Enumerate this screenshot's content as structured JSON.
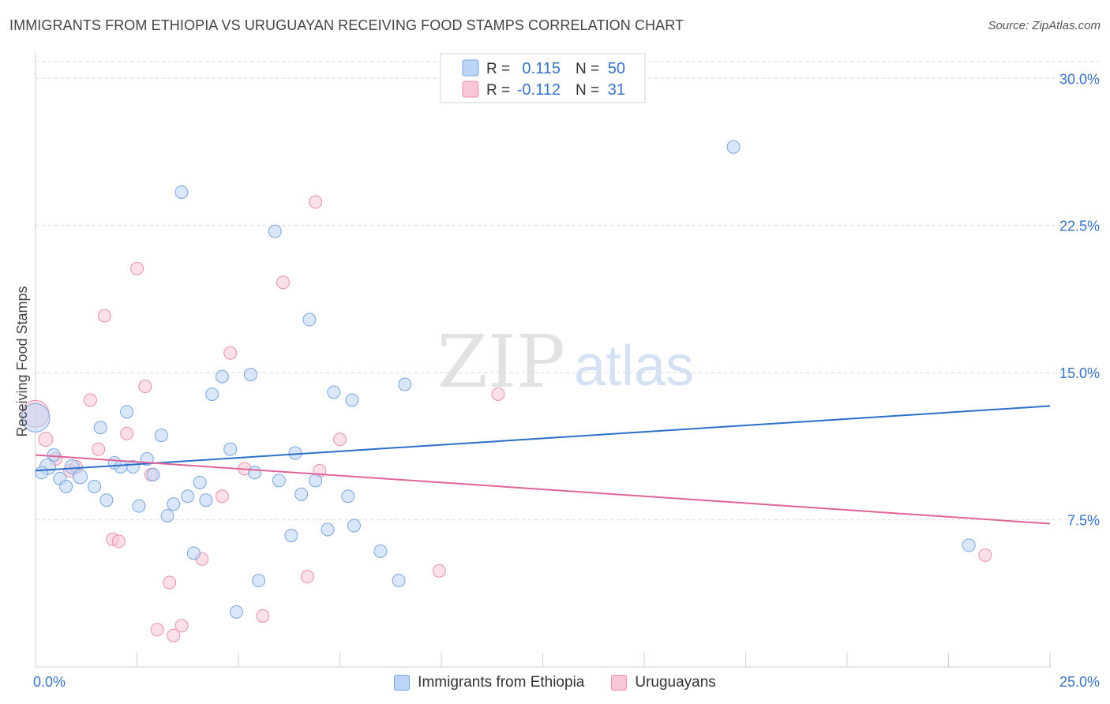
{
  "header": {
    "title": "IMMIGRANTS FROM ETHIOPIA VS URUGUAYAN RECEIVING FOOD STAMPS CORRELATION CHART",
    "source": "Source: ZipAtlas.com"
  },
  "watermark": {
    "zip": "ZIP",
    "atlas": "atlas"
  },
  "colors": {
    "blue_fill": "#bcd4f5",
    "blue_stroke": "#7ba6e2",
    "blue_line": "#2c6fcb",
    "pink_fill": "#f9c6d6",
    "pink_stroke": "#ec90ae",
    "pink_line": "#e0649a",
    "axis_label": "#3a74c8",
    "grid": "#d9d9d9"
  },
  "stats_legend": {
    "rows": [
      {
        "r_label": "R =",
        "r_value": "0.115",
        "n_label": "N =",
        "n_value": "50",
        "color": "blue"
      },
      {
        "r_label": "R =",
        "r_value": "-0.112",
        "n_label": "N =",
        "n_value": "31",
        "color": "pink"
      }
    ]
  },
  "chart_data": {
    "type": "scatter",
    "title": "IMMIGRANTS FROM ETHIOPIA VS URUGUAYAN RECEIVING FOOD STAMPS CORRELATION CHART",
    "xlabel": "",
    "ylabel": "Receiving Food Stamps",
    "xlim": [
      0,
      25
    ],
    "ylim": [
      0,
      31.5
    ],
    "x_tick_labels": [
      {
        "value": 0,
        "label": "0.0%"
      },
      {
        "value": 25,
        "label": "25.0%"
      }
    ],
    "y_tick_labels": [
      {
        "value": 7.5,
        "label": "7.5%"
      },
      {
        "value": 15,
        "label": "15.0%"
      },
      {
        "value": 22.5,
        "label": "22.5%"
      },
      {
        "value": 30,
        "label": "30.0%"
      }
    ],
    "x_minor_ticks": [
      2.5,
      5,
      7.5,
      10,
      12.5,
      15,
      17.5,
      20,
      22.5,
      25
    ],
    "grid": true,
    "legend_position": "bottom",
    "series": [
      {
        "name": "Immigrants from Ethiopia",
        "color": "blue",
        "points": [
          [
            0.0,
            12.7,
            18
          ],
          [
            0.3,
            10.2,
            10
          ],
          [
            0.45,
            10.8,
            8
          ],
          [
            0.6,
            9.6,
            8
          ],
          [
            0.75,
            9.2,
            8
          ],
          [
            0.9,
            10.2,
            9
          ],
          [
            1.1,
            9.7,
            9
          ],
          [
            1.45,
            9.2,
            8
          ],
          [
            1.6,
            12.2,
            8
          ],
          [
            1.75,
            8.5,
            8
          ],
          [
            1.95,
            10.4,
            8
          ],
          [
            2.1,
            10.2,
            8
          ],
          [
            2.25,
            13.0,
            8
          ],
          [
            2.4,
            10.2,
            8
          ],
          [
            2.55,
            8.2,
            8
          ],
          [
            2.75,
            10.6,
            8
          ],
          [
            2.9,
            9.8,
            8
          ],
          [
            3.1,
            11.8,
            8
          ],
          [
            3.25,
            7.7,
            8
          ],
          [
            3.4,
            8.3,
            8
          ],
          [
            3.6,
            24.2,
            8
          ],
          [
            3.75,
            8.7,
            8
          ],
          [
            3.9,
            5.8,
            8
          ],
          [
            4.05,
            9.4,
            8
          ],
          [
            4.2,
            8.5,
            8
          ],
          [
            4.35,
            13.9,
            8
          ],
          [
            4.6,
            14.8,
            8
          ],
          [
            4.8,
            11.1,
            8
          ],
          [
            4.95,
            2.8,
            8
          ],
          [
            5.3,
            14.9,
            8
          ],
          [
            5.4,
            9.9,
            8
          ],
          [
            5.5,
            4.4,
            8
          ],
          [
            5.9,
            22.2,
            8
          ],
          [
            6.0,
            9.5,
            8
          ],
          [
            6.3,
            6.7,
            8
          ],
          [
            6.4,
            10.9,
            8
          ],
          [
            6.55,
            8.8,
            8
          ],
          [
            6.75,
            17.7,
            8
          ],
          [
            6.9,
            9.5,
            8
          ],
          [
            7.2,
            7.0,
            8
          ],
          [
            7.35,
            14.0,
            8
          ],
          [
            7.7,
            8.7,
            8
          ],
          [
            7.8,
            13.6,
            8
          ],
          [
            7.85,
            7.2,
            8
          ],
          [
            8.5,
            5.9,
            8
          ],
          [
            8.95,
            4.4,
            8
          ],
          [
            9.1,
            14.4,
            8
          ],
          [
            17.2,
            26.5,
            8
          ],
          [
            23.0,
            6.2,
            8
          ],
          [
            0.15,
            9.9,
            8
          ]
        ]
      },
      {
        "name": "Uruguayans",
        "color": "pink",
        "points": [
          [
            0.0,
            12.9,
            17
          ],
          [
            0.25,
            11.6,
            9
          ],
          [
            0.5,
            10.6,
            8
          ],
          [
            0.85,
            10.0,
            8
          ],
          [
            1.0,
            10.2,
            8
          ],
          [
            1.35,
            13.6,
            8
          ],
          [
            1.55,
            11.1,
            8
          ],
          [
            1.7,
            17.9,
            8
          ],
          [
            1.9,
            6.5,
            8
          ],
          [
            2.05,
            6.4,
            8
          ],
          [
            2.25,
            11.9,
            8
          ],
          [
            2.5,
            20.3,
            8
          ],
          [
            2.7,
            14.3,
            8
          ],
          [
            2.85,
            9.8,
            8
          ],
          [
            3.0,
            1.9,
            8
          ],
          [
            3.3,
            4.3,
            8
          ],
          [
            3.4,
            1.6,
            8
          ],
          [
            3.6,
            2.1,
            8
          ],
          [
            4.1,
            5.5,
            8
          ],
          [
            4.6,
            8.7,
            8
          ],
          [
            4.8,
            16.0,
            8
          ],
          [
            5.15,
            10.1,
            8
          ],
          [
            5.6,
            2.6,
            8
          ],
          [
            6.1,
            19.6,
            8
          ],
          [
            6.7,
            4.6,
            8
          ],
          [
            6.9,
            23.7,
            8
          ],
          [
            7.0,
            10.0,
            8
          ],
          [
            7.5,
            11.6,
            8
          ],
          [
            9.95,
            4.9,
            8
          ],
          [
            11.4,
            13.9,
            8
          ],
          [
            23.4,
            5.7,
            8
          ]
        ]
      }
    ],
    "trend_lines": [
      {
        "series": "Immigrants from Ethiopia",
        "color": "blue",
        "x": [
          0,
          25
        ],
        "y": [
          10.0,
          13.3
        ]
      },
      {
        "series": "Uruguayans",
        "color": "pink",
        "x": [
          0,
          25
        ],
        "y": [
          10.8,
          7.3
        ]
      }
    ]
  }
}
